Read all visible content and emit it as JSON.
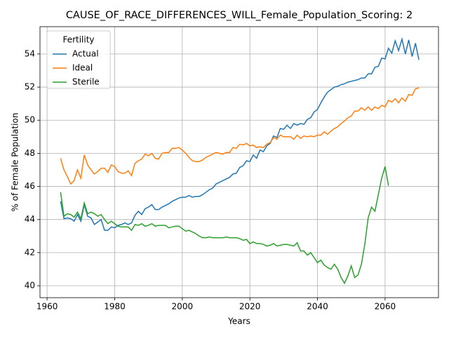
{
  "chart_data": {
    "type": "line",
    "title": "CAUSE_OF_RACE_DIFFERENCES_WILL_Female_Population_Scoring: 2",
    "xlabel": "Years",
    "ylabel": "% of Female Population",
    "legend_title": "Fertility",
    "legend_loc": "upper left",
    "grid": true,
    "x": [
      1964,
      1965,
      1966,
      1967,
      1968,
      1969,
      1970,
      1971,
      1972,
      1973,
      1974,
      1975,
      1976,
      1977,
      1978,
      1979,
      1980,
      1981,
      1982,
      1983,
      1984,
      1985,
      1986,
      1987,
      1988,
      1989,
      1990,
      1991,
      1992,
      1993,
      1994,
      1995,
      1996,
      1997,
      1998,
      1999,
      2000,
      2001,
      2002,
      2003,
      2004,
      2005,
      2006,
      2007,
      2008,
      2009,
      2010,
      2011,
      2012,
      2013,
      2014,
      2015,
      2016,
      2017,
      2018,
      2019,
      2020,
      2021,
      2022,
      2023,
      2024,
      2025,
      2026,
      2027,
      2028,
      2029,
      2030,
      2031,
      2032,
      2033,
      2034,
      2035,
      2036,
      2037,
      2038,
      2039,
      2040,
      2041,
      2042,
      2043,
      2044,
      2045,
      2046,
      2047,
      2048,
      2049,
      2050,
      2051,
      2052,
      2053,
      2054,
      2055,
      2056,
      2057,
      2058,
      2059,
      2060,
      2061,
      2062,
      2063,
      2064,
      2065,
      2066,
      2067,
      2068,
      2069,
      2070
    ],
    "series": [
      {
        "name": "Actual",
        "color": "#1f77b4",
        "values": [
          45.1,
          44.05,
          44.1,
          44.05,
          43.9,
          44.3,
          43.9,
          44.9,
          44.2,
          44.1,
          43.7,
          43.85,
          44.0,
          43.35,
          43.35,
          43.55,
          43.5,
          43.65,
          43.7,
          43.8,
          43.7,
          43.8,
          44.25,
          44.5,
          44.3,
          44.65,
          44.75,
          44.9,
          44.6,
          44.6,
          44.75,
          44.85,
          44.95,
          45.1,
          45.2,
          45.3,
          45.35,
          45.35,
          45.45,
          45.35,
          45.4,
          45.4,
          45.5,
          45.65,
          45.8,
          45.9,
          46.15,
          46.25,
          46.35,
          46.45,
          46.55,
          46.75,
          46.8,
          47.15,
          47.25,
          47.55,
          47.5,
          47.9,
          47.7,
          48.2,
          48.1,
          48.45,
          48.6,
          49.05,
          48.95,
          49.5,
          49.45,
          49.7,
          49.5,
          49.8,
          49.7,
          49.8,
          49.75,
          50.05,
          50.15,
          50.5,
          50.65,
          51.05,
          51.4,
          51.7,
          51.85,
          52.0,
          52.05,
          52.15,
          52.2,
          52.3,
          52.35,
          52.4,
          52.45,
          52.55,
          52.55,
          52.8,
          52.8,
          53.2,
          53.25,
          53.75,
          53.7,
          54.35,
          54.05,
          54.8,
          54.2,
          54.9,
          54.0,
          54.85,
          53.85,
          54.65,
          53.65
        ]
      },
      {
        "name": "Ideal",
        "color": "#ff7f0e",
        "values": [
          47.7,
          47.0,
          46.6,
          46.15,
          46.35,
          47.0,
          46.5,
          47.9,
          47.3,
          47.0,
          46.75,
          46.9,
          47.1,
          47.1,
          46.85,
          47.3,
          47.2,
          46.9,
          46.8,
          46.8,
          46.95,
          46.65,
          47.4,
          47.55,
          47.65,
          47.95,
          47.85,
          48.0,
          47.7,
          47.65,
          48.0,
          48.05,
          48.05,
          48.3,
          48.3,
          48.35,
          48.2,
          48.0,
          47.75,
          47.55,
          47.5,
          47.5,
          47.6,
          47.75,
          47.85,
          47.95,
          48.05,
          48.0,
          47.95,
          48.05,
          48.05,
          48.35,
          48.3,
          48.55,
          48.5,
          48.6,
          48.45,
          48.5,
          48.35,
          48.4,
          48.35,
          48.55,
          48.65,
          48.95,
          48.85,
          49.1,
          49.0,
          49.0,
          49.0,
          48.85,
          49.1,
          48.9,
          49.05,
          49.0,
          49.05,
          49.0,
          49.1,
          49.1,
          49.3,
          49.15,
          49.35,
          49.5,
          49.6,
          49.8,
          49.95,
          50.15,
          50.25,
          50.55,
          50.55,
          50.75,
          50.6,
          50.8,
          50.6,
          50.8,
          50.7,
          50.9,
          50.8,
          51.2,
          51.1,
          51.3,
          51.05,
          51.35,
          51.15,
          51.55,
          51.5,
          51.9,
          51.95
        ]
      },
      {
        "name": "Sterile",
        "color": "#2ca02c",
        "values": [
          45.65,
          44.2,
          44.35,
          44.3,
          44.15,
          44.45,
          44.05,
          45.0,
          44.35,
          44.45,
          44.35,
          44.2,
          44.3,
          44.0,
          43.75,
          43.9,
          43.75,
          43.6,
          43.55,
          43.55,
          43.55,
          43.35,
          43.7,
          43.65,
          43.75,
          43.6,
          43.65,
          43.75,
          43.6,
          43.65,
          43.65,
          43.65,
          43.5,
          43.55,
          43.6,
          43.6,
          43.45,
          43.3,
          43.35,
          43.25,
          43.15,
          43.0,
          42.9,
          42.9,
          42.95,
          42.9,
          42.9,
          42.9,
          42.9,
          42.95,
          42.9,
          42.9,
          42.9,
          42.85,
          42.75,
          42.8,
          42.55,
          42.65,
          42.55,
          42.55,
          42.5,
          42.4,
          42.45,
          42.55,
          42.4,
          42.45,
          42.5,
          42.5,
          42.45,
          42.4,
          42.6,
          42.1,
          42.1,
          41.85,
          42.0,
          41.7,
          41.4,
          41.55,
          41.25,
          41.1,
          41.0,
          41.3,
          41.0,
          40.5,
          40.15,
          40.6,
          41.2,
          40.5,
          40.65,
          41.3,
          42.5,
          44.1,
          44.75,
          44.5,
          45.5,
          46.5,
          47.2,
          46.05,
          null,
          null,
          null,
          null,
          null,
          null,
          null,
          null,
          null
        ]
      }
    ],
    "xlim": [
      1957.9,
      2075.8
    ],
    "xticks": [
      1960,
      1980,
      2000,
      2020,
      2040,
      2060
    ],
    "ylim": [
      39.28,
      55.65
    ],
    "yticks": [
      40,
      42,
      44,
      46,
      48,
      50,
      52,
      54
    ]
  }
}
